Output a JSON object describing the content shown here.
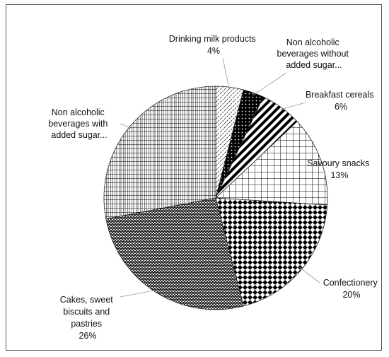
{
  "chart_data": {
    "type": "pie",
    "title": "",
    "slices": [
      {
        "label_lines": [
          "Drinking milk products"
        ],
        "pct_text": "4%",
        "value": 4
      },
      {
        "label_lines": [
          "Non alcoholic",
          "beverages without",
          "added sugar..."
        ],
        "pct_text": "",
        "value": 3
      },
      {
        "label_lines": [
          "Breakfast cereals"
        ],
        "pct_text": "6%",
        "value": 6
      },
      {
        "label_lines": [
          "Savoury snacks"
        ],
        "pct_text": "13%",
        "value": 13
      },
      {
        "label_lines": [
          "Confectionery"
        ],
        "pct_text": "20%",
        "value": 20
      },
      {
        "label_lines": [
          "Cakes, sweet",
          "biscuits and",
          "pastries"
        ],
        "pct_text": "26%",
        "value": 26
      },
      {
        "label_lines": [
          "Non alcoholic",
          "beverages with",
          "added sugar..."
        ],
        "pct_text": "",
        "value": 28
      }
    ]
  }
}
